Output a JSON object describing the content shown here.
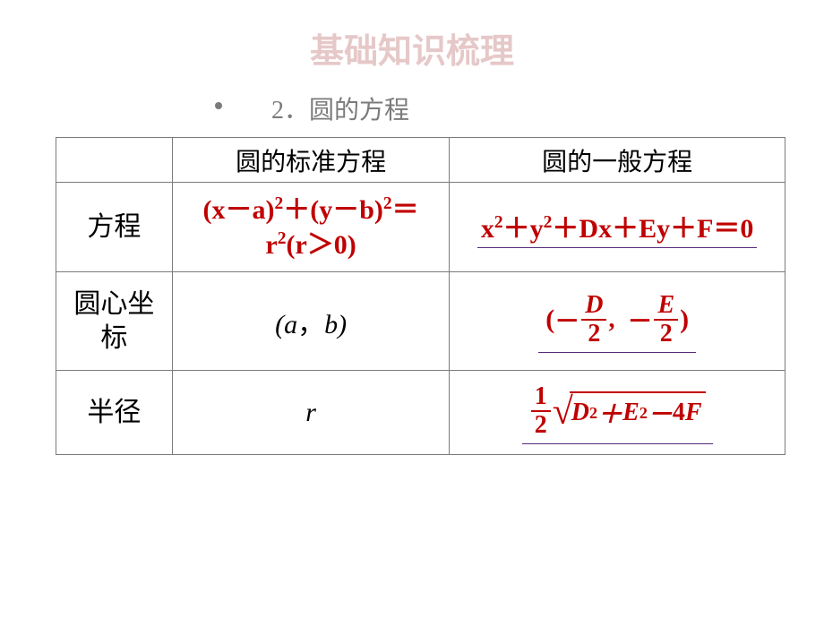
{
  "colors": {
    "title_color": "#e6c8c8",
    "subtitle_color": "#7b7b7b",
    "border_color": "#7b7b7b",
    "red": "#c00000",
    "black": "#000000",
    "purple": "#5a2a7a"
  },
  "title": "基础知识梳理",
  "subtitle": "2．圆的方程",
  "table": {
    "corner": "",
    "hdr_std": "圆的标准方程",
    "hdr_gen": "圆的一般方程",
    "row_eq_label": "方程",
    "row_ct_label": "圆心坐标",
    "row_r_label": "半径",
    "std_eq_line1": "(x－a)²＋(y－b)²＝",
    "std_eq_line2": "r²(r＞0)",
    "gen_eq": "x²＋y²＋Dx＋Ey＋F＝0",
    "center_std_a": "a",
    "center_std_b": "b",
    "center_gen_D": "D",
    "center_gen_E": "E",
    "center_gen_den": "2",
    "radius_std": "r",
    "radius_gen_halfnum": "1",
    "radius_gen_halfden": "2",
    "radius_gen_D": "D",
    "radius_gen_E": "E",
    "radius_gen_F": "F",
    "radius_gen_4": "4",
    "sq": "2"
  }
}
